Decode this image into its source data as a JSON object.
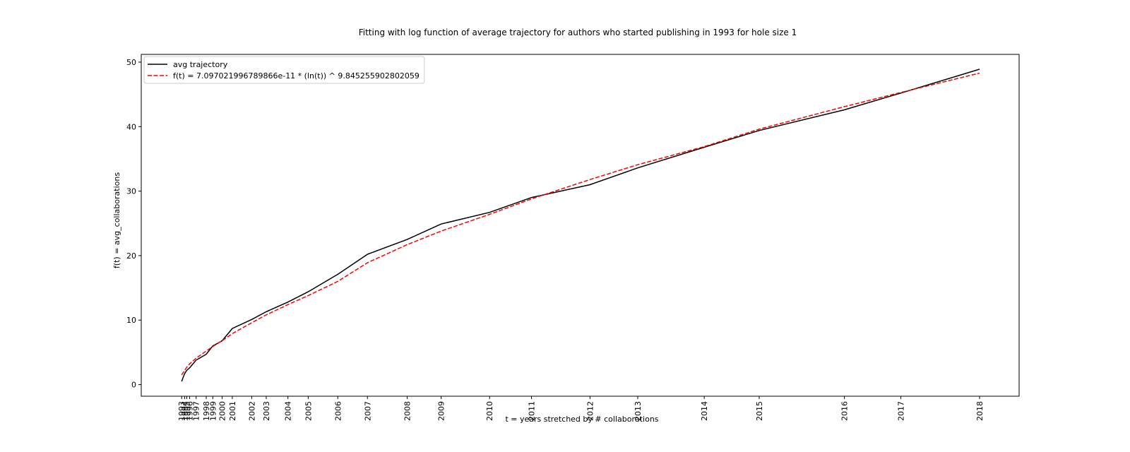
{
  "chart_data": {
    "type": "line",
    "title": "Fitting with log function of average trajectory for authors who started publishing in 1993 for hole size 1",
    "x_label": "t = years stretched by # collaborations",
    "y_label": "f(t) = avg_collaborations",
    "x": [
      72000,
      102000,
      124000,
      154000,
      221000,
      325000,
      393000,
      489000,
      594000,
      795000,
      944000,
      1168000,
      1377000,
      1682000,
      1988000,
      2398000,
      2748000,
      3248000,
      3680000,
      4284000,
      4776000,
      5462000,
      6029000,
      6908000,
      7490000,
      8302000
    ],
    "series": [
      {
        "name": "avg trajectory",
        "color": "#000000",
        "dash": false,
        "values": [
          0.5,
          1.7,
          2.2,
          2.6,
          3.8,
          4.7,
          6.0,
          6.8,
          8.7,
          10.1,
          11.3,
          12.8,
          14.4,
          17.1,
          20.2,
          22.5,
          24.9,
          26.7,
          29.0,
          31.0,
          33.6,
          36.8,
          39.4,
          42.6,
          45.2,
          48.9
        ]
      },
      {
        "name": "f(t) = 7.097021996789866e-11 * (ln(t)) ^ 9.845255902802059",
        "color": "#ff0000",
        "dash": true,
        "values": [
          1.5,
          2.2,
          2.7,
          3.2,
          4.1,
          5.2,
          5.9,
          6.8,
          7.9,
          9.6,
          10.8,
          12.4,
          13.8,
          16.0,
          18.9,
          21.7,
          23.8,
          26.4,
          28.8,
          31.8,
          34.1,
          36.9,
          39.6,
          43.1,
          45.3,
          48.3
        ]
      }
    ],
    "xlim": [
      -345000,
      8710000
    ],
    "ylim": [
      -1.8,
      51.2
    ],
    "yticks": [
      0,
      10,
      20,
      30,
      40,
      50
    ],
    "xticks": [
      {
        "value": 72000,
        "label": "1993"
      },
      {
        "value": 102000,
        "label": "1994"
      },
      {
        "value": 124000,
        "label": "1995"
      },
      {
        "value": 154000,
        "label": "1996"
      },
      {
        "value": 221000,
        "label": "1997"
      },
      {
        "value": 325000,
        "label": "1998"
      },
      {
        "value": 393000,
        "label": "1999"
      },
      {
        "value": 489000,
        "label": "2000"
      },
      {
        "value": 594000,
        "label": "2001"
      },
      {
        "value": 795000,
        "label": "2002"
      },
      {
        "value": 944000,
        "label": "2003"
      },
      {
        "value": 1168000,
        "label": "2004"
      },
      {
        "value": 1377000,
        "label": "2005"
      },
      {
        "value": 1682000,
        "label": "2006"
      },
      {
        "value": 1988000,
        "label": "2007"
      },
      {
        "value": 2398000,
        "label": "2008"
      },
      {
        "value": 2748000,
        "label": "2009"
      },
      {
        "value": 3248000,
        "label": "2010"
      },
      {
        "value": 3680000,
        "label": "2011"
      },
      {
        "value": 4284000,
        "label": "2012"
      },
      {
        "value": 4776000,
        "label": "2013"
      },
      {
        "value": 5462000,
        "label": "2014"
      },
      {
        "value": 6029000,
        "label": "2015"
      },
      {
        "value": 6908000,
        "label": "2016"
      },
      {
        "value": 7490000,
        "label": "2017"
      },
      {
        "value": 8302000,
        "label": "2018"
      }
    ],
    "legend": "upper left"
  }
}
